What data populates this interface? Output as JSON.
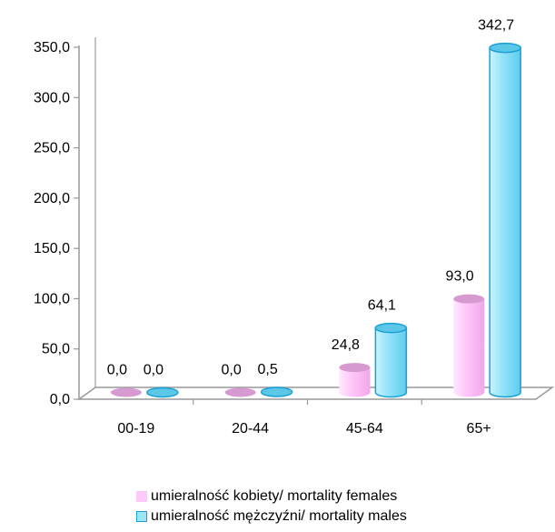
{
  "chart_data": {
    "type": "bar",
    "categories": [
      "00-19",
      "20-44",
      "45-64",
      "65+"
    ],
    "series": [
      {
        "name": "umieralność kobiety/ mortality females",
        "values": [
          0.0,
          0.0,
          24.8,
          93.0
        ],
        "labels": [
          "0,0",
          "0,0",
          "24,8",
          "93,0"
        ],
        "color": "#ffc0f8"
      },
      {
        "name": "umieralność mężczyźni/ mortality males",
        "values": [
          0.0,
          0.5,
          64.1,
          342.7
        ],
        "labels": [
          "0,0",
          "0,5",
          "64,1",
          "342,7"
        ],
        "color": "#8fe3f8",
        "edge_color": "#1a9fd6"
      }
    ],
    "yticks": [
      "0,0",
      "50,0",
      "100,0",
      "150,0",
      "200,0",
      "250,0",
      "300,0",
      "350,0"
    ],
    "ylim": [
      0,
      350
    ],
    "legend_position": "bottom",
    "grid": false,
    "style": "3d-cylinder"
  },
  "legend": {
    "female": "umieralność kobiety/ mortality females",
    "male": "umieralność mężczyźni/ mortality males"
  }
}
